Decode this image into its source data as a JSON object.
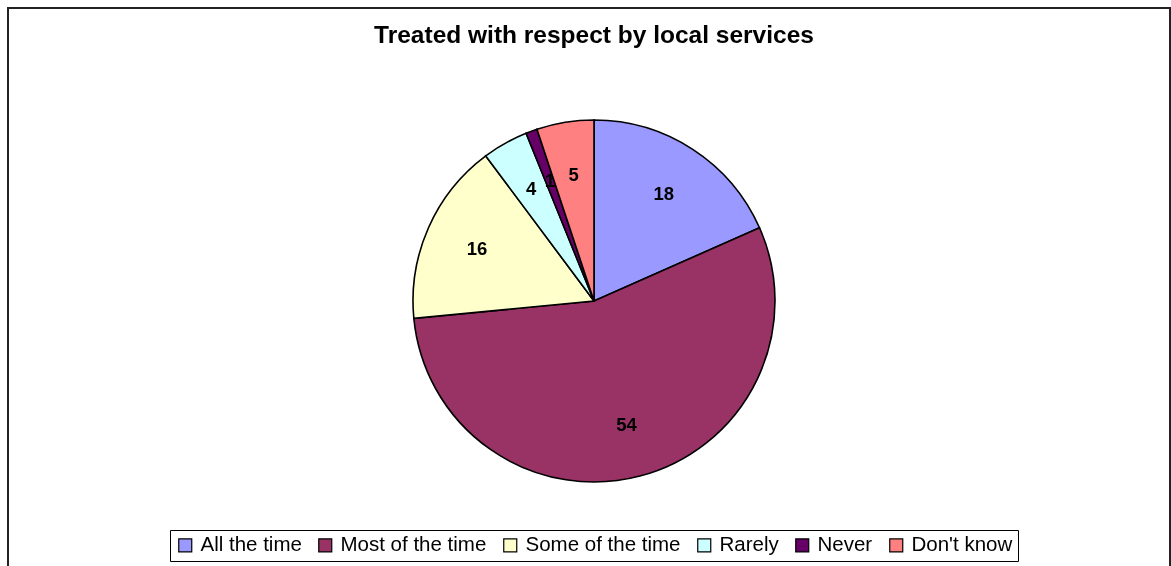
{
  "chart_data": {
    "type": "pie",
    "title": "Treated with respect by local services",
    "categories": [
      "All the time",
      "Most of the time",
      "Some of the time",
      "Rarely",
      "Never",
      "Don't know"
    ],
    "values": [
      18,
      54,
      16,
      4,
      1,
      5
    ],
    "colors": [
      "#9999ff",
      "#993366",
      "#ffffcc",
      "#ccffff",
      "#660066",
      "#ff8080"
    ],
    "data_labels": true,
    "legend": "bottom"
  }
}
